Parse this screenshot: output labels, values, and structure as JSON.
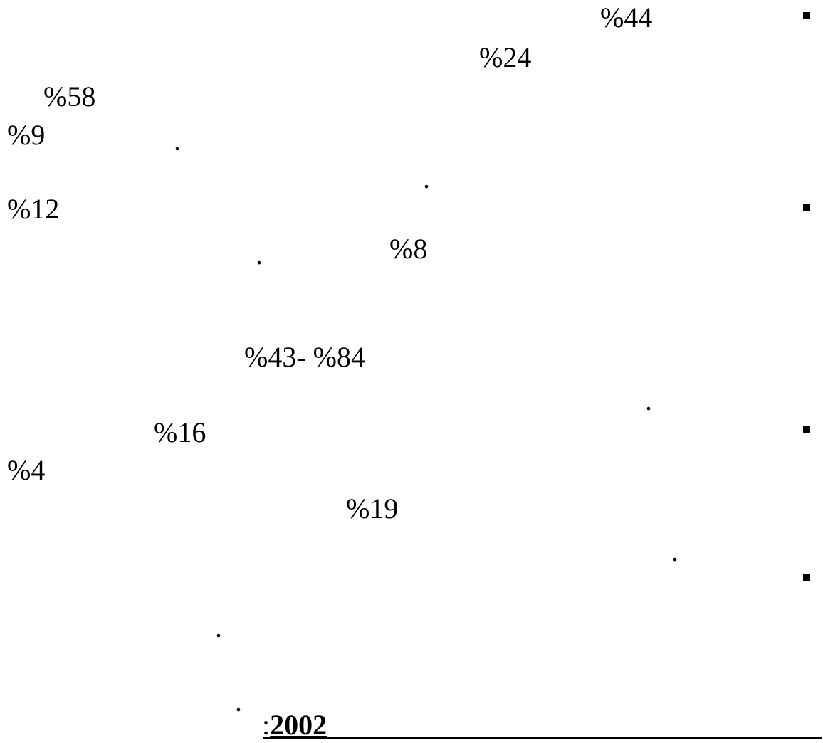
{
  "lines": [
    {
      "id": "p1",
      "text": "%44"
    },
    {
      "id": "p2",
      "text": "%24"
    },
    {
      "id": "p3",
      "text": "%58"
    },
    {
      "id": "p4",
      "text": "%9"
    },
    {
      "id": "p5",
      "text": "%12"
    },
    {
      "id": "p6",
      "text": "%8"
    },
    {
      "id": "p7",
      "text": "%43- %84"
    },
    {
      "id": "p8",
      "text": "%16"
    },
    {
      "id": "p9",
      "text": "%4"
    },
    {
      "id": "p10",
      "text": "%19"
    }
  ],
  "period": ".",
  "footer": {
    "colon": ":",
    "year": "2002"
  }
}
